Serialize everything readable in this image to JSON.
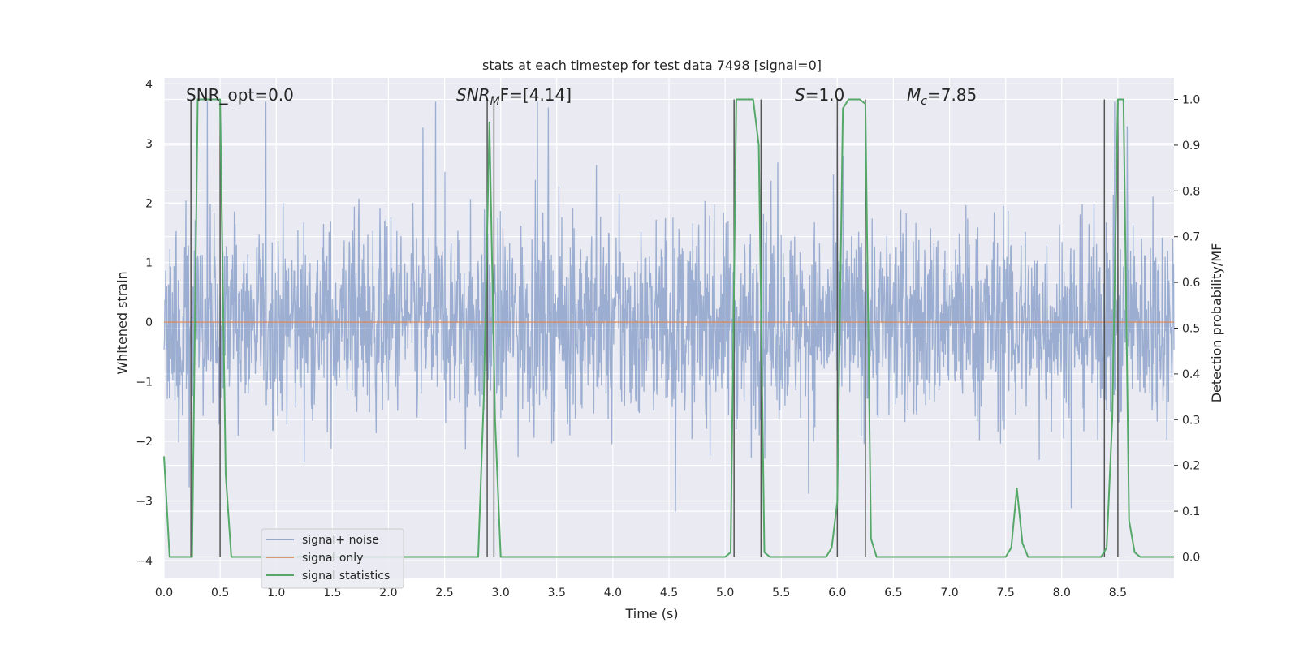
{
  "chart_data": {
    "type": "line",
    "title": "stats at each timestep for test data 7498 [signal=0]",
    "xlabel": "Time (s)",
    "ylabel": "Whitened strain",
    "ylabel_right": "Detection probability/MF",
    "xlim": [
      0.0,
      9.0
    ],
    "ylim": [
      -4.3,
      4.1
    ],
    "ylim_right": [
      -0.047,
      1.047
    ],
    "x_ticks": [
      "0.0",
      "0.5",
      "1.0",
      "1.5",
      "2.0",
      "2.5",
      "3.0",
      "3.5",
      "4.0",
      "4.5",
      "5.0",
      "5.5",
      "6.0",
      "6.5",
      "7.0",
      "7.5",
      "8.0",
      "8.5"
    ],
    "y_ticks": [
      "−4",
      "−3",
      "−2",
      "−1",
      "0",
      "1",
      "2",
      "3",
      "4"
    ],
    "y_ticks_right": [
      "0.0",
      "0.1",
      "0.2",
      "0.3",
      "0.4",
      "0.5",
      "0.6",
      "0.7",
      "0.8",
      "0.9",
      "1.0"
    ],
    "grid": true,
    "legend_position": "lower-left",
    "colors": {
      "noise": "#4c72b0",
      "signal": "#dd8452",
      "stats": "#55a868",
      "vline": "#555555",
      "background": "#eaeaf2",
      "grid": "#ffffff"
    },
    "annotations": [
      {
        "text": "SNR_opt=0.0",
        "x": 0.2
      },
      {
        "text_main": "SNR",
        "text_sub": "M",
        "text_tail": "F=[4.14]",
        "x": 2.6
      },
      {
        "text_main": "S",
        "text_tail": "=1.0",
        "x": 5.6
      },
      {
        "text_main": "M",
        "text_sub": "c",
        "text_tail": "=7.85",
        "x": 6.6
      }
    ],
    "series": [
      {
        "name": "signal+ noise",
        "kind": "noise",
        "range": [
          -4.0,
          3.7
        ],
        "typical_amplitude": 1.5
      },
      {
        "name": "signal only",
        "kind": "constant",
        "value": 0.0
      },
      {
        "name": "signal statistics",
        "kind": "probability",
        "x": [
          0.0,
          0.05,
          0.1,
          0.15,
          0.2,
          0.25,
          0.3,
          0.35,
          0.4,
          0.45,
          0.5,
          0.55,
          0.6,
          0.65,
          0.7,
          2.8,
          2.85,
          2.9,
          2.95,
          3.0,
          3.05,
          5.0,
          5.05,
          5.1,
          5.15,
          5.2,
          5.25,
          5.3,
          5.35,
          5.4,
          5.9,
          5.95,
          6.0,
          6.05,
          6.1,
          6.15,
          6.2,
          6.25,
          6.3,
          6.35,
          6.4,
          7.5,
          7.55,
          7.6,
          7.65,
          7.7,
          8.3,
          8.35,
          8.4,
          8.45,
          8.5,
          8.55,
          8.6,
          8.65,
          8.7,
          9.0
        ],
        "y": [
          0.22,
          0.0,
          0.0,
          0.0,
          0.0,
          0.0,
          1.0,
          1.0,
          1.0,
          1.0,
          1.0,
          0.18,
          0.0,
          0.0,
          0.0,
          0.0,
          0.35,
          0.95,
          0.3,
          0.0,
          0.0,
          0.0,
          0.01,
          1.0,
          1.0,
          1.0,
          1.0,
          0.9,
          0.01,
          0.0,
          0.0,
          0.02,
          0.12,
          0.98,
          1.0,
          1.0,
          1.0,
          0.99,
          0.04,
          0.0,
          0.0,
          0.0,
          0.02,
          0.15,
          0.03,
          0.0,
          0.0,
          0.0,
          0.02,
          0.3,
          1.0,
          1.0,
          0.08,
          0.01,
          0.0,
          0.0
        ]
      }
    ],
    "vertical_lines": [
      0.24,
      0.5,
      2.88,
      2.94,
      5.08,
      5.32,
      6.0,
      6.25,
      8.38,
      8.5
    ]
  }
}
